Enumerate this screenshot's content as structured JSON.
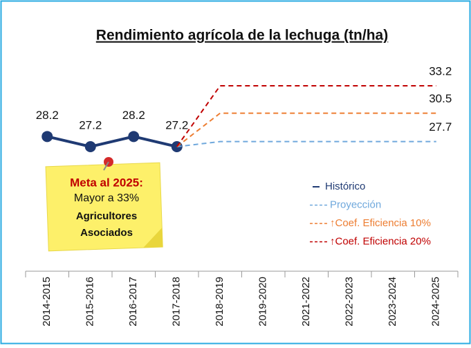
{
  "chart_data": {
    "type": "line",
    "title": "Rendimiento agrícola de la lechuga (tn/ha)",
    "categories": [
      "2014-2015",
      "2015-2016",
      "2016-2017",
      "2017-2018",
      "2018-2019",
      "2019-2020",
      "2021-2022",
      "2022-2023",
      "2023-2024",
      "2024-2025"
    ],
    "series": [
      {
        "name": "Histórico",
        "color": "#1f3a73",
        "values": [
          28.2,
          27.2,
          28.2,
          27.2,
          null,
          null,
          null,
          null,
          null,
          null
        ]
      },
      {
        "name": "Proyección",
        "color": "#6fa8dc",
        "values": [
          null,
          null,
          null,
          27.2,
          27.7,
          27.7,
          27.7,
          27.7,
          27.7,
          27.7
        ]
      },
      {
        "name": "↑Coef. Eficiencia 10%",
        "color": "#ed7d31",
        "values": [
          null,
          null,
          null,
          27.2,
          30.5,
          30.5,
          30.5,
          30.5,
          30.5,
          30.5
        ]
      },
      {
        "name": "↑Coef. Eficiencia 20%",
        "color": "#c00000",
        "values": [
          null,
          null,
          null,
          27.2,
          33.2,
          33.2,
          33.2,
          33.2,
          33.2,
          33.2
        ]
      }
    ],
    "note": {
      "title": "Meta al 2025:",
      "lines": [
        "Mayor a 33%",
        "Agricultores",
        "Asociados"
      ]
    }
  }
}
